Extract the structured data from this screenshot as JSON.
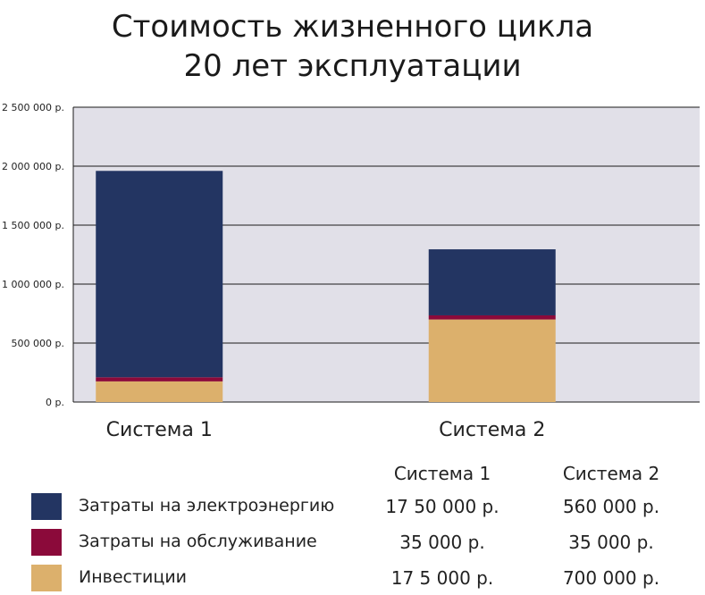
{
  "chart_data": {
    "type": "bar",
    "stacked": true,
    "title_lines": [
      "Стоимость жизненного цикла",
      "20 лет эксплуатации"
    ],
    "categories": [
      "Система 1",
      "Система  2"
    ],
    "yticks": [
      "0 р.",
      "500 000 р.",
      "1 000 000 р.",
      "1 500 000 р.",
      "2 000 000 р.",
      "2 500 000 р."
    ],
    "ylim": [
      0,
      2500000
    ],
    "grid": true,
    "series": [
      {
        "name": "Инвестиции",
        "color": "#dcb06c",
        "values": [
          175000,
          700000
        ],
        "display": [
          "17 5 000 р.",
          "700 000 р."
        ]
      },
      {
        "name": "Затраты на обслуживание",
        "color": "#8b0a3a",
        "values": [
          35000,
          35000
        ],
        "display": [
          "35 000 р.",
          "35 000 р."
        ]
      },
      {
        "name": "Затраты на электроэнергию",
        "color": "#233562",
        "values": [
          1750000,
          560000
        ],
        "display": [
          "17 50 000 р.",
          "560 000 р."
        ]
      }
    ],
    "legend_order": [
      2,
      1,
      0
    ],
    "plot_background": "#e1e0e8"
  }
}
